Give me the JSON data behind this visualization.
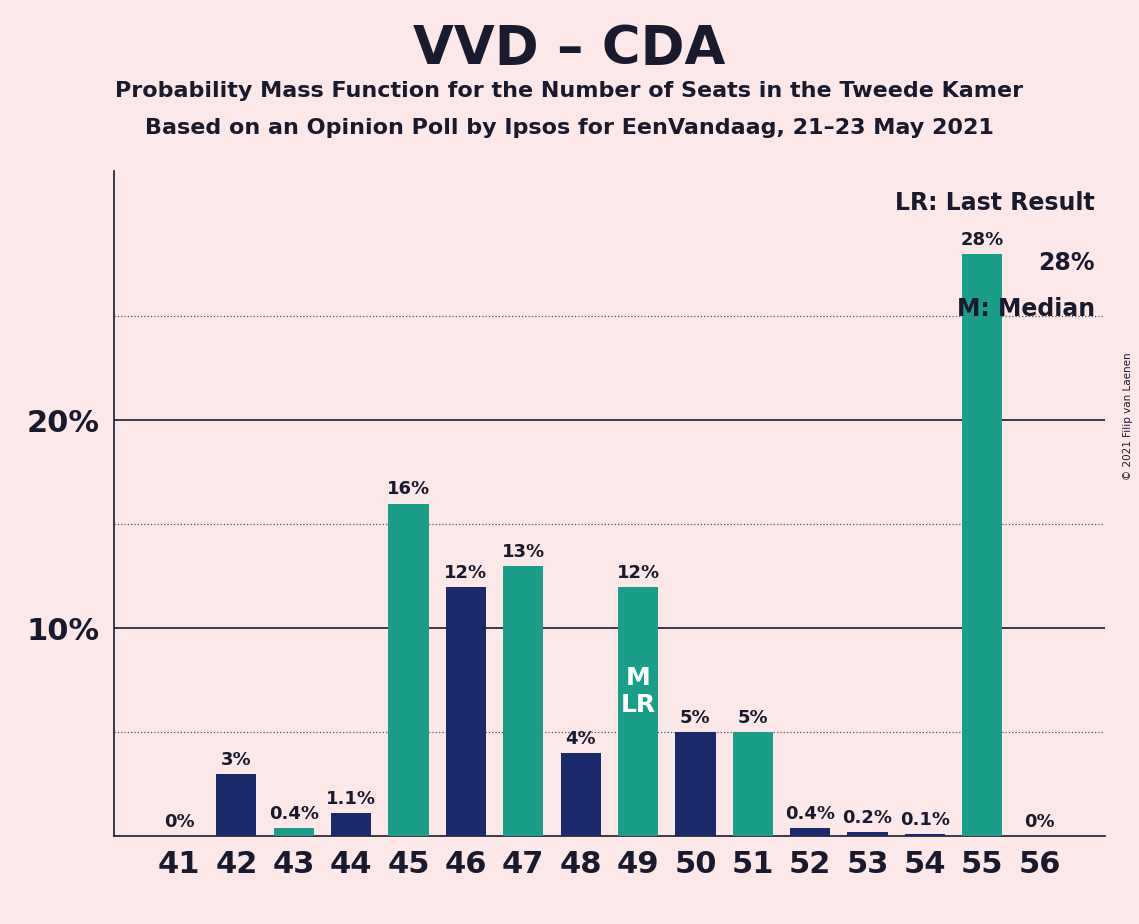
{
  "title": "VVD – CDA",
  "subtitle1": "Probability Mass Function for the Number of Seats in the Tweede Kamer",
  "subtitle2": "Based on an Opinion Poll by Ipsos for EenVandaag, 21–23 May 2021",
  "copyright": "© 2021 Filip van Laenen",
  "seats": [
    41,
    42,
    43,
    44,
    45,
    46,
    47,
    48,
    49,
    50,
    51,
    52,
    53,
    54,
    55,
    56
  ],
  "values": [
    0.0,
    3.0,
    0.4,
    1.1,
    16.0,
    12.0,
    13.0,
    4.0,
    12.0,
    5.0,
    5.0,
    0.4,
    0.2,
    0.1,
    28.0,
    0.0
  ],
  "labels": [
    "0%",
    "3%",
    "0.4%",
    "1.1%",
    "16%",
    "12%",
    "13%",
    "4%",
    "12%",
    "5%",
    "5%",
    "0.4%",
    "0.2%",
    "0.1%",
    "28%",
    "0%"
  ],
  "colors": [
    "#1b2a6b",
    "#1b2a6b",
    "#1a9e8a",
    "#1b2a6b",
    "#1a9e8a",
    "#1b2a6b",
    "#1a9e8a",
    "#1b2a6b",
    "#1a9e8a",
    "#1b2a6b",
    "#1a9e8a",
    "#1b2a6b",
    "#1b2a6b",
    "#1b2a6b",
    "#1a9e8a",
    "#1a9e8a"
  ],
  "median_seat_idx": 8,
  "legend_lr": "LR: Last Result",
  "legend_28": "28%",
  "legend_m": "M: Median",
  "background_color": "#fce8e8",
  "ylim_max": 32,
  "solid_yticks": [
    10,
    20
  ],
  "dotted_yticks": [
    5,
    15,
    25
  ],
  "ytick_labels_pos": [
    10,
    20
  ],
  "ytick_labels_text": [
    "10%",
    "20%"
  ],
  "title_fontsize": 38,
  "subtitle_fontsize": 16,
  "xtick_fontsize": 22,
  "ytick_fontsize": 22,
  "bar_label_fontsize": 13,
  "inside_label_fontsize": 18,
  "legend_fontsize": 17
}
